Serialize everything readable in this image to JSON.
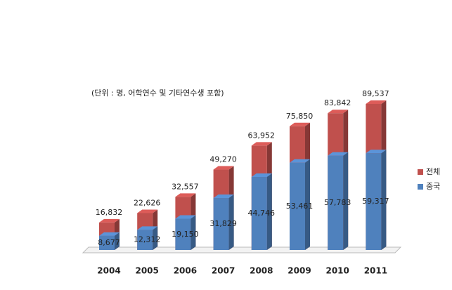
{
  "chart_data": {
    "type": "bar",
    "overlap": true,
    "subtitle": "(단위 : 명, 어학연수 및 기타연수생 포함)",
    "categories": [
      "2004",
      "2005",
      "2006",
      "2007",
      "2008",
      "2009",
      "2010",
      "2011"
    ],
    "series": [
      {
        "name": "전체",
        "color": "#c0504d",
        "values": [
          16832,
          22626,
          32557,
          49270,
          63952,
          75850,
          83842,
          89537
        ],
        "value_labels": [
          "16,832",
          "22,626",
          "32,557",
          "49,270",
          "63,952",
          "75,850",
          "83,842",
          "89,537"
        ]
      },
      {
        "name": "중국",
        "color": "#4f81bd",
        "values": [
          8677,
          12312,
          19150,
          31829,
          44746,
          53461,
          57783,
          59317
        ],
        "value_labels": [
          "8,677",
          "12,312",
          "19,150",
          "31,829",
          "44,746",
          "53,461",
          "57,783",
          "59,317"
        ]
      }
    ],
    "legend": "right"
  }
}
